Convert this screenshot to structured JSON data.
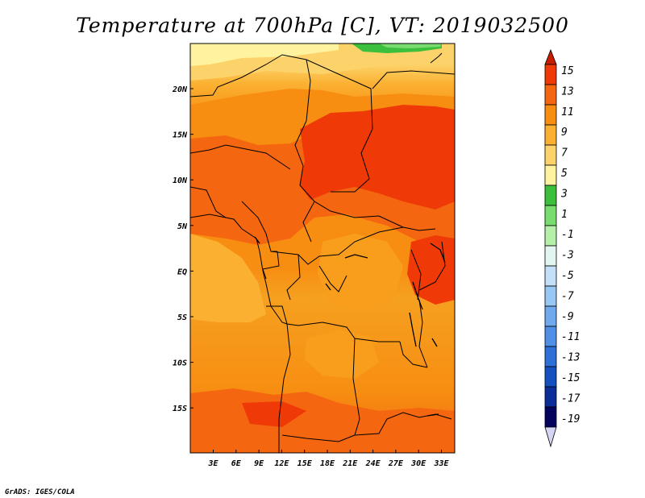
{
  "title": "Temperature at 700hPa [C], VT: 2019032500",
  "credit": "GrADS: IGES/COLA",
  "map": {
    "lon_labels": [
      "3E",
      "6E",
      "9E",
      "12E",
      "15E",
      "18E",
      "21E",
      "24E",
      "27E",
      "30E",
      "33E"
    ],
    "lat_labels": [
      "20N",
      "15N",
      "10N",
      "5N",
      "EQ",
      "5S",
      "10S",
      "15S"
    ]
  },
  "colorbar": {
    "labels": [
      "15",
      "13",
      "11",
      "9",
      "7",
      "5",
      "3",
      "1",
      "-1",
      "-3",
      "-5",
      "-7",
      "-9",
      "-11",
      "-13",
      "-15",
      "-17",
      "-19"
    ],
    "colors": [
      "#c81e00",
      "#ef3a08",
      "#f46710",
      "#f78e12",
      "#fbb031",
      "#fcd36a",
      "#fff3a0",
      "#3cbf3c",
      "#78dd6e",
      "#b5f0a8",
      "#e2f5f0",
      "#c4e0f8",
      "#98c7f4",
      "#70a9ec",
      "#4f8fe6",
      "#2f6fd8",
      "#1450c0",
      "#0a2d98",
      "#04045e",
      "#d6d6f4"
    ]
  }
}
